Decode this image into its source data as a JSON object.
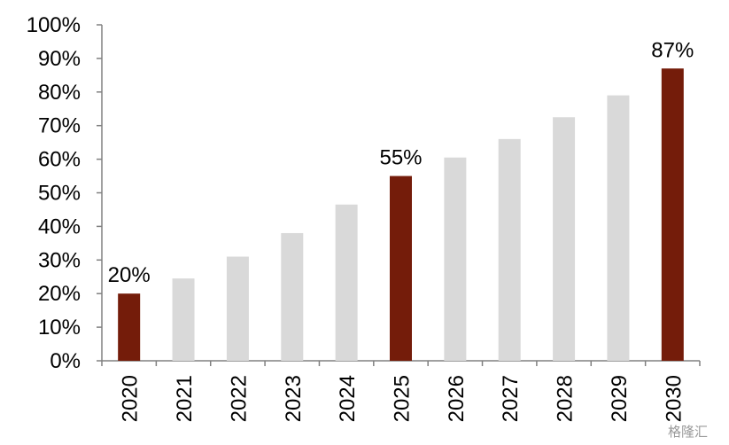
{
  "chart_data": {
    "type": "bar",
    "categories": [
      "2020",
      "2021",
      "2022",
      "2023",
      "2024",
      "2025",
      "2026",
      "2027",
      "2028",
      "2029",
      "2030"
    ],
    "values": [
      20,
      24.5,
      31,
      38,
      46.5,
      55,
      60.5,
      66,
      72.5,
      79,
      87
    ],
    "highlighted": [
      "2020",
      "2025",
      "2030"
    ],
    "data_labels": {
      "2020": "20%",
      "2025": "55%",
      "2030": "87%"
    },
    "ylim": [
      0,
      100
    ],
    "yticks": [
      "0%",
      "10%",
      "20%",
      "30%",
      "40%",
      "50%",
      "60%",
      "70%",
      "80%",
      "90%",
      "100%"
    ],
    "grid": false,
    "colors": {
      "highlight": "#741c0a",
      "normal": "#d9d9d9",
      "axis": "#808080"
    }
  },
  "watermark": "格隆汇"
}
